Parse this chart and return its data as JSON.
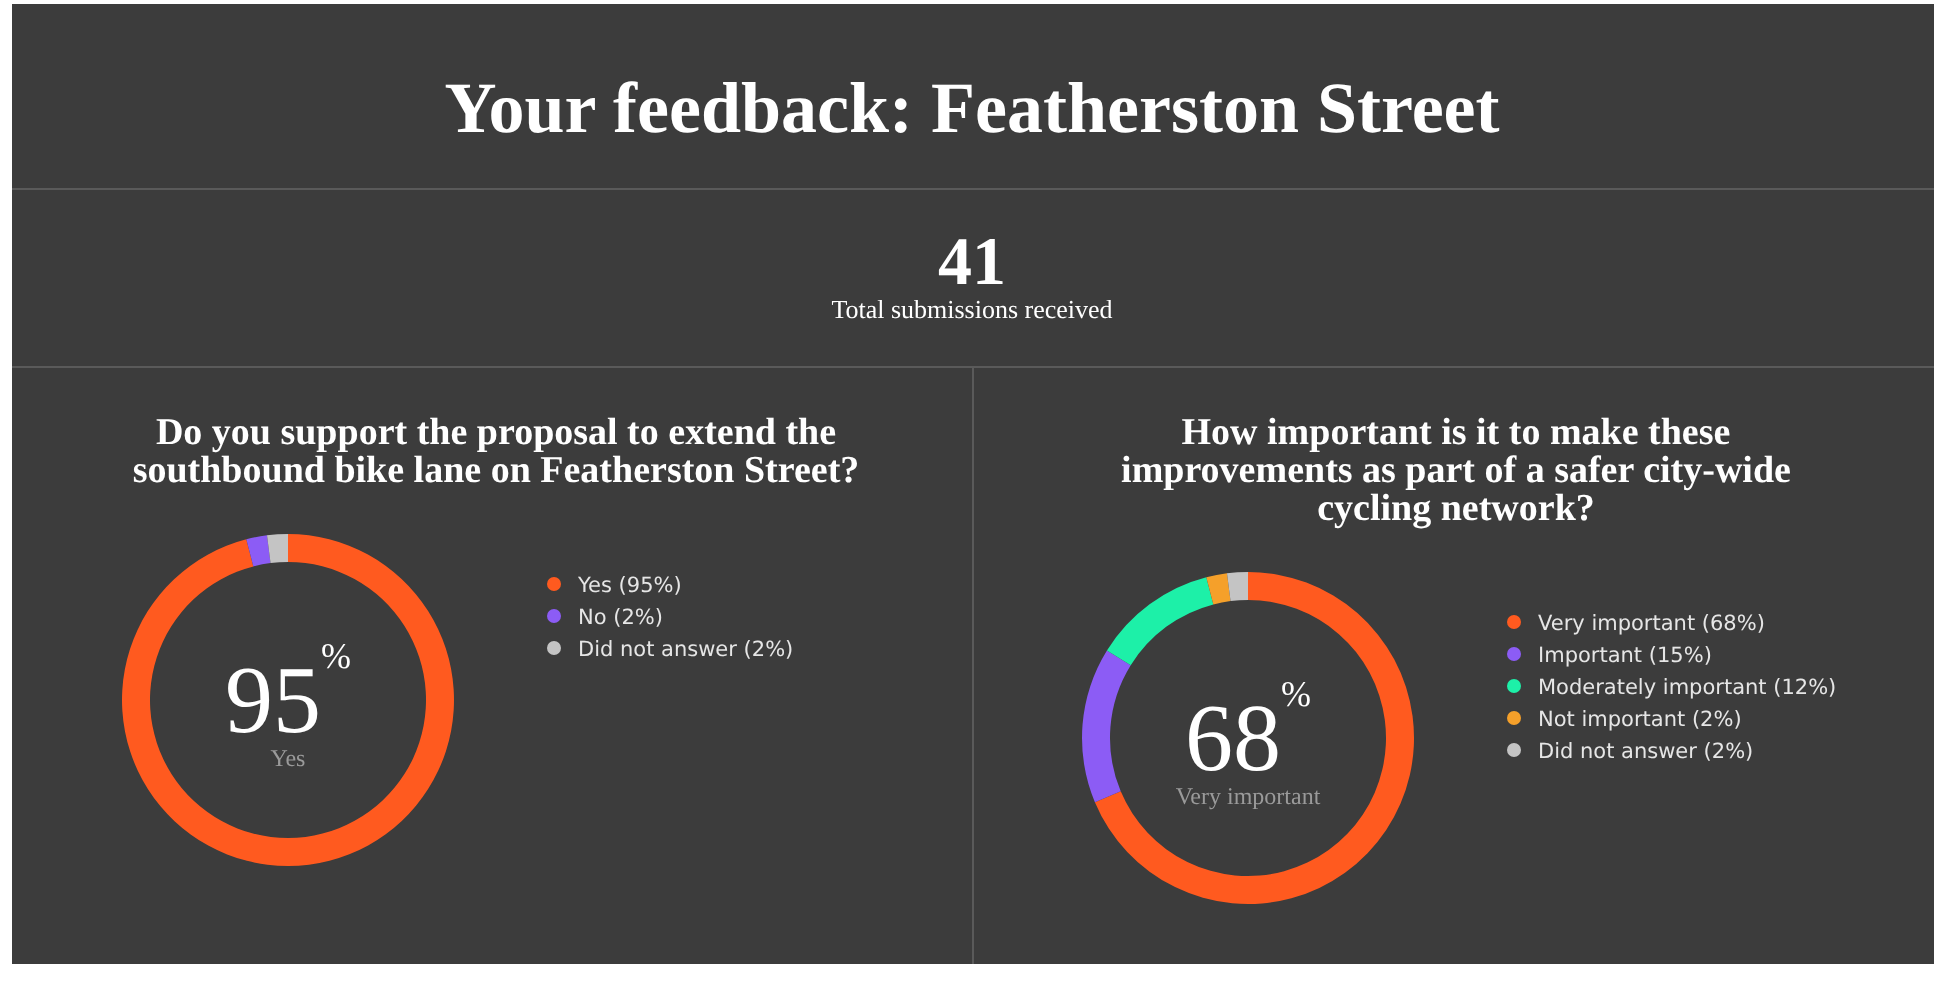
{
  "chart_data": [
    {
      "type": "other",
      "title": "Your feedback: Featherston Street",
      "annotations": [
        "41",
        "Total submissions received"
      ]
    },
    {
      "type": "donut",
      "title": "Do you support the proposal to extend the southbound bike lane on Featherston Street?",
      "categories": [
        "Yes (95%)",
        "No (2%)",
        "Did not answer (2%)"
      ],
      "values": [
        95,
        2,
        2
      ],
      "colors": [
        "#ff5a1f",
        "#8c5cf5",
        "#c4c4c4"
      ],
      "legend": "right",
      "annotations": [
        "95$^{%}$",
        "Yes"
      ]
    },
    {
      "type": "donut",
      "title": "How important is it to make these improvements as part of a safer city-wide cycling network?",
      "categories": [
        "Very important (68%)",
        "Important (15%)",
        "Moderately important (12%)",
        "Not important (2%)",
        "Did not answer (2%)"
      ],
      "values": [
        68,
        15,
        12,
        2,
        2
      ],
      "colors": [
        "#ff5a1f",
        "#8c5cf5",
        "#1df0a8",
        "#f5a02a",
        "#c4c4c4"
      ],
      "legend": "right",
      "annotations": [
        "68$^{%}$",
        "Very important"
      ]
    }
  ]
}
